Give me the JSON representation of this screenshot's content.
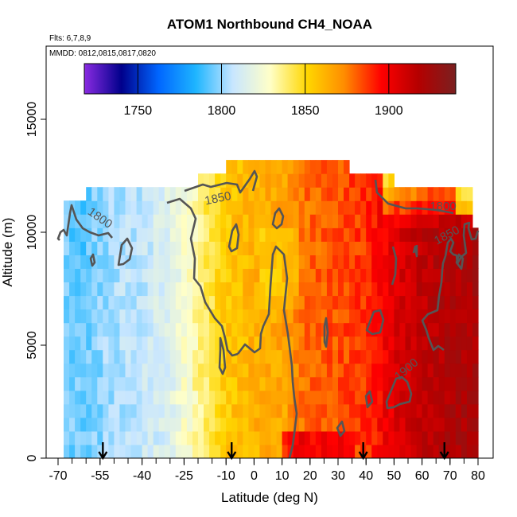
{
  "chart_data": {
    "type": "heatmap",
    "title": "ATOM1 Northbound CH4_NOAA",
    "annotations": [
      "Flts: 6,7,8,9",
      "MMDD: 0812,0815,0817,0820"
    ],
    "xlabel": "Latitude (deg N)",
    "ylabel": "Altitude (m)",
    "xlim": [
      -70,
      80
    ],
    "ylim": [
      0,
      18000
    ],
    "x_ticks": [
      -70,
      -55,
      -40,
      -25,
      -10,
      0,
      10,
      20,
      30,
      40,
      50,
      60,
      70,
      80
    ],
    "y_ticks": [
      0,
      5000,
      10000,
      15000
    ],
    "colorbar": {
      "range": [
        1718,
        1940
      ],
      "ticks": [
        1750,
        1800,
        1850,
        1900
      ],
      "colors": [
        "#8a2be2",
        "#00008b",
        "#0066ff",
        "#1eb5ff",
        "#c8e6ff",
        "#ffffc8",
        "#ffd700",
        "#ff8c00",
        "#ff0000",
        "#b40000",
        "#7a2020"
      ]
    },
    "contour_levels": [
      1800,
      1850,
      1900
    ],
    "contour_labels": [
      "1800",
      "1850",
      "1900",
      "1800",
      "1850"
    ],
    "flight_markers_lat": [
      -54,
      -8,
      39,
      68
    ],
    "latitude_profile": [
      {
        "lat": -68,
        "ch4": 1797
      },
      {
        "lat": -60,
        "ch4": 1795
      },
      {
        "lat": -50,
        "ch4": 1803
      },
      {
        "lat": -40,
        "ch4": 1807
      },
      {
        "lat": -30,
        "ch4": 1815
      },
      {
        "lat": -20,
        "ch4": 1835
      },
      {
        "lat": -10,
        "ch4": 1855
      },
      {
        "lat": 0,
        "ch4": 1862
      },
      {
        "lat": 10,
        "ch4": 1866
      },
      {
        "lat": 20,
        "ch4": 1880
      },
      {
        "lat": 30,
        "ch4": 1883
      },
      {
        "lat": 40,
        "ch4": 1888
      },
      {
        "lat": 50,
        "ch4": 1905
      },
      {
        "lat": 60,
        "ch4": 1915
      },
      {
        "lat": 70,
        "ch4": 1920
      },
      {
        "lat": 78,
        "ch4": 1922
      }
    ]
  }
}
